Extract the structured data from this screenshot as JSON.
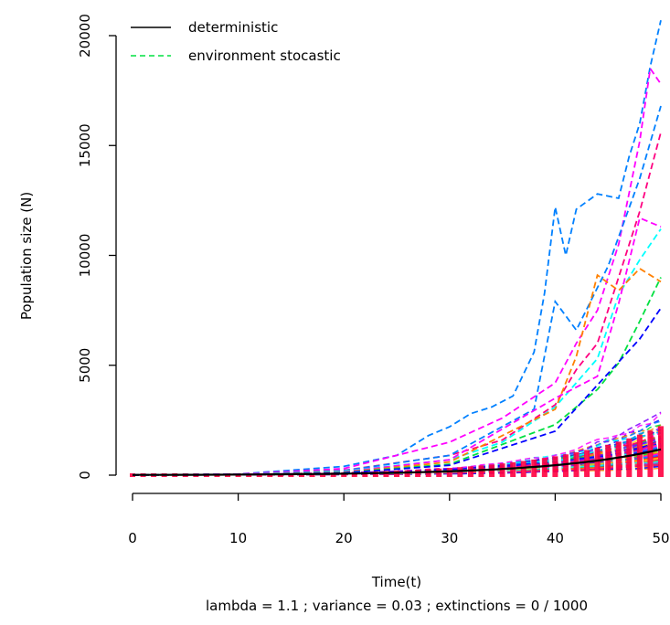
{
  "chart_data": {
    "type": "line",
    "title": "",
    "xlabel": "Time(t)",
    "subtitle": "lambda =  1.1 ; variance =  0.03 ; extinctions =  0 / 1000",
    "ylabel": "Population size (N)",
    "xlim": [
      0,
      50
    ],
    "ylim": [
      0,
      20000
    ],
    "x_ticks": [
      "0",
      "10",
      "20",
      "30",
      "40",
      "50"
    ],
    "y_ticks": [
      "0",
      "5000",
      "10000",
      "15000",
      "20000"
    ],
    "grid": false,
    "legend": {
      "position": "top-left",
      "entries": [
        {
          "label": "deterministic",
          "color": "#000000",
          "style": "solid"
        },
        {
          "label": "environment stocastic",
          "color": "#00e040",
          "style": "dashed"
        }
      ]
    },
    "deterministic": {
      "name": "deterministic",
      "color": "#000000",
      "N0": 10,
      "lambda": 1.1,
      "x": [
        0,
        5,
        10,
        15,
        20,
        25,
        30,
        35,
        40,
        45,
        50
      ],
      "values": [
        10,
        16,
        26,
        42,
        67,
        108,
        174,
        281,
        453,
        729,
        1174
      ]
    },
    "stochastic": {
      "name": "environment stocastic",
      "runs": 1000,
      "extinctions": 0,
      "variance": 0.03,
      "N0": 10,
      "x_end": 50,
      "typical_final": 1200,
      "max_final": 20700,
      "palette": [
        "#ff0040",
        "#ff00ff",
        "#0080ff",
        "#00ffff",
        "#ff8000",
        "#00e040",
        "#ffd000",
        "#8000ff",
        "#0000ff",
        "#ff0080"
      ],
      "highlighted": [
        {
          "color": "#0080ff",
          "x": [
            0,
            10,
            20,
            25,
            28,
            30,
            32,
            34,
            36,
            38,
            39,
            40,
            41,
            42,
            44,
            46,
            47,
            48,
            49,
            50
          ],
          "values": [
            10,
            50,
            400,
            900,
            1800,
            2200,
            2800,
            3100,
            3600,
            5600,
            8300,
            12200,
            10000,
            12100,
            12800,
            12600,
            14500,
            16000,
            18600,
            20700
          ]
        },
        {
          "color": "#ff00ff",
          "x": [
            0,
            10,
            20,
            30,
            35,
            40,
            42,
            44,
            46,
            48,
            49,
            50
          ],
          "values": [
            10,
            40,
            300,
            1500,
            2600,
            4200,
            6000,
            7500,
            10500,
            15200,
            18500,
            17800
          ]
        },
        {
          "color": "#ff0080",
          "x": [
            0,
            10,
            20,
            30,
            35,
            40,
            42,
            44,
            46,
            48,
            50
          ],
          "values": [
            10,
            30,
            220,
            900,
            1600,
            3200,
            4800,
            6000,
            9000,
            12000,
            15600
          ]
        },
        {
          "color": "#0080ff",
          "x": [
            0,
            10,
            20,
            30,
            38,
            40,
            42,
            45,
            48,
            50
          ],
          "values": [
            10,
            30,
            200,
            900,
            3000,
            7900,
            6600,
            9500,
            13500,
            16800
          ]
        },
        {
          "color": "#00ffff",
          "x": [
            0,
            10,
            20,
            30,
            35,
            40,
            44,
            46,
            48,
            50
          ],
          "values": [
            10,
            25,
            180,
            700,
            1500,
            3100,
            5300,
            8200,
            9800,
            11200
          ]
        },
        {
          "color": "#ff00ff",
          "x": [
            0,
            10,
            20,
            30,
            40,
            44,
            46,
            48,
            50
          ],
          "values": [
            10,
            22,
            150,
            700,
            3500,
            4500,
            7800,
            11700,
            11300
          ]
        },
        {
          "color": "#ff8000",
          "x": [
            0,
            10,
            20,
            30,
            40,
            42,
            44,
            46,
            48,
            50
          ],
          "values": [
            10,
            20,
            130,
            600,
            3000,
            5400,
            9100,
            8400,
            9400,
            8800
          ]
        },
        {
          "color": "#00e040",
          "x": [
            0,
            10,
            20,
            30,
            40,
            44,
            46,
            48,
            50
          ],
          "values": [
            10,
            20,
            120,
            500,
            2300,
            3900,
            5100,
            7000,
            9000
          ]
        },
        {
          "color": "#0000ff",
          "x": [
            0,
            10,
            20,
            30,
            40,
            44,
            48,
            50
          ],
          "values": [
            10,
            18,
            100,
            450,
            2000,
            4100,
            6200,
            7600
          ]
        }
      ]
    }
  }
}
